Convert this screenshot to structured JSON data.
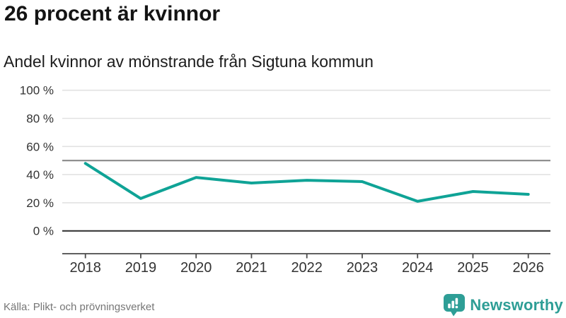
{
  "header": {
    "title": "26 procent är kvinnor",
    "subtitle": "Andel kvinnor av mönstrande från Sigtuna kommun"
  },
  "chart_data": {
    "type": "line",
    "x": [
      "2018",
      "2019",
      "2020",
      "2021",
      "2022",
      "2023",
      "2024",
      "2025",
      "2026"
    ],
    "series": [
      {
        "name": "Andel kvinnor av mönstrande",
        "values": [
          48,
          23,
          38,
          34,
          36,
          35,
          21,
          28,
          26
        ]
      }
    ],
    "title": "26 procent är kvinnor",
    "subtitle": "Andel kvinnor av mönstrande från Sigtuna kommun",
    "xlabel": "",
    "ylabel": "",
    "ylim": [
      0,
      100
    ],
    "yticks": [
      {
        "value": 0,
        "label": "0 %"
      },
      {
        "value": 20,
        "label": "20 %"
      },
      {
        "value": 40,
        "label": "40 %"
      },
      {
        "value": 60,
        "label": "60 %"
      },
      {
        "value": 80,
        "label": "80 %"
      },
      {
        "value": 100,
        "label": "100 %"
      }
    ],
    "reference_line": 50,
    "grid": true,
    "legend_position": "none",
    "line_color": "#0fa396",
    "grid_color": "#e2e2e2",
    "reference_line_color": "#8a8a8a",
    "zero_line_color": "#2d2d2d",
    "axis_color": "#4a4a4a",
    "tick_label_color": "#333333"
  },
  "footer": {
    "source": "Källa: Plikt- och prövningsverket",
    "brand": {
      "name": "Newsworthy",
      "color": "#2e9e96",
      "icon": "newsworthy-bubble-barchart-icon"
    }
  }
}
